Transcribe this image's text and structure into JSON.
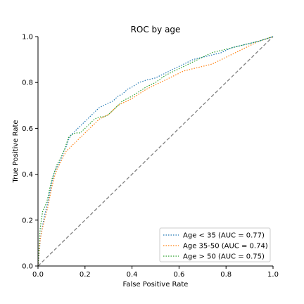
{
  "chart_data": {
    "type": "line",
    "title": "ROC by age",
    "xlabel": "False Positive Rate",
    "ylabel": "True Positive Rate",
    "xlim": [
      0,
      1
    ],
    "ylim": [
      0,
      1
    ],
    "x_ticks": [
      "0.0",
      "0.2",
      "0.4",
      "0.6",
      "0.8",
      "1.0"
    ],
    "y_ticks": [
      "0.0",
      "0.2",
      "0.4",
      "0.6",
      "0.8",
      "1.0"
    ],
    "grid": false,
    "legend_position": "lower-right",
    "reference_line": {
      "x": [
        0,
        1
      ],
      "y": [
        0,
        1
      ],
      "color": "#808080",
      "style": "dashed"
    },
    "series": [
      {
        "name": "Age < 35 (AUC = 0.77)",
        "color": "#1f77b4",
        "x": [
          0.0,
          0.005,
          0.01,
          0.02,
          0.03,
          0.04,
          0.05,
          0.06,
          0.07,
          0.08,
          0.09,
          0.1,
          0.11,
          0.12,
          0.13,
          0.14,
          0.15,
          0.16,
          0.18,
          0.2,
          0.22,
          0.24,
          0.26,
          0.28,
          0.3,
          0.32,
          0.34,
          0.36,
          0.38,
          0.4,
          0.43,
          0.46,
          0.5,
          0.54,
          0.58,
          0.62,
          0.66,
          0.7,
          0.74,
          0.78,
          0.82,
          0.86,
          0.9,
          0.94,
          0.97,
          1.0
        ],
        "y": [
          0.0,
          0.05,
          0.12,
          0.18,
          0.23,
          0.27,
          0.32,
          0.37,
          0.41,
          0.43,
          0.45,
          0.47,
          0.5,
          0.52,
          0.55,
          0.57,
          0.58,
          0.59,
          0.61,
          0.63,
          0.65,
          0.67,
          0.69,
          0.7,
          0.71,
          0.72,
          0.74,
          0.75,
          0.77,
          0.78,
          0.8,
          0.81,
          0.82,
          0.84,
          0.86,
          0.88,
          0.9,
          0.91,
          0.92,
          0.93,
          0.95,
          0.96,
          0.97,
          0.98,
          0.99,
          1.0
        ]
      },
      {
        "name": "Age 35-50 (AUC = 0.74)",
        "color": "#ff7f0e",
        "x": [
          0.0,
          0.005,
          0.01,
          0.02,
          0.03,
          0.04,
          0.05,
          0.06,
          0.07,
          0.08,
          0.09,
          0.1,
          0.11,
          0.12,
          0.14,
          0.16,
          0.18,
          0.2,
          0.22,
          0.24,
          0.26,
          0.28,
          0.3,
          0.32,
          0.34,
          0.36,
          0.38,
          0.4,
          0.43,
          0.46,
          0.5,
          0.54,
          0.58,
          0.62,
          0.66,
          0.7,
          0.74,
          0.78,
          0.82,
          0.86,
          0.9,
          0.94,
          0.97,
          1.0
        ],
        "y": [
          0.0,
          0.06,
          0.12,
          0.17,
          0.21,
          0.25,
          0.3,
          0.35,
          0.39,
          0.42,
          0.44,
          0.46,
          0.48,
          0.5,
          0.52,
          0.54,
          0.56,
          0.58,
          0.6,
          0.62,
          0.64,
          0.65,
          0.66,
          0.68,
          0.7,
          0.71,
          0.72,
          0.73,
          0.75,
          0.77,
          0.79,
          0.81,
          0.83,
          0.85,
          0.86,
          0.87,
          0.88,
          0.9,
          0.92,
          0.94,
          0.96,
          0.98,
          0.99,
          1.0
        ]
      },
      {
        "name": "Age > 50 (AUC = 0.75)",
        "color": "#2ca02c",
        "x": [
          0.0,
          0.005,
          0.01,
          0.02,
          0.03,
          0.04,
          0.05,
          0.06,
          0.07,
          0.08,
          0.09,
          0.1,
          0.11,
          0.12,
          0.13,
          0.14,
          0.16,
          0.18,
          0.2,
          0.22,
          0.24,
          0.26,
          0.28,
          0.3,
          0.32,
          0.34,
          0.36,
          0.38,
          0.4,
          0.43,
          0.46,
          0.5,
          0.54,
          0.58,
          0.62,
          0.66,
          0.7,
          0.74,
          0.78,
          0.82,
          0.86,
          0.9,
          0.94,
          0.97,
          1.0
        ],
        "y": [
          0.0,
          0.1,
          0.17,
          0.24,
          0.26,
          0.29,
          0.34,
          0.38,
          0.41,
          0.44,
          0.46,
          0.48,
          0.5,
          0.53,
          0.56,
          0.57,
          0.58,
          0.58,
          0.6,
          0.62,
          0.64,
          0.65,
          0.65,
          0.66,
          0.68,
          0.7,
          0.72,
          0.73,
          0.74,
          0.76,
          0.78,
          0.8,
          0.83,
          0.85,
          0.87,
          0.89,
          0.91,
          0.93,
          0.94,
          0.95,
          0.96,
          0.97,
          0.98,
          0.99,
          1.0
        ]
      }
    ]
  }
}
